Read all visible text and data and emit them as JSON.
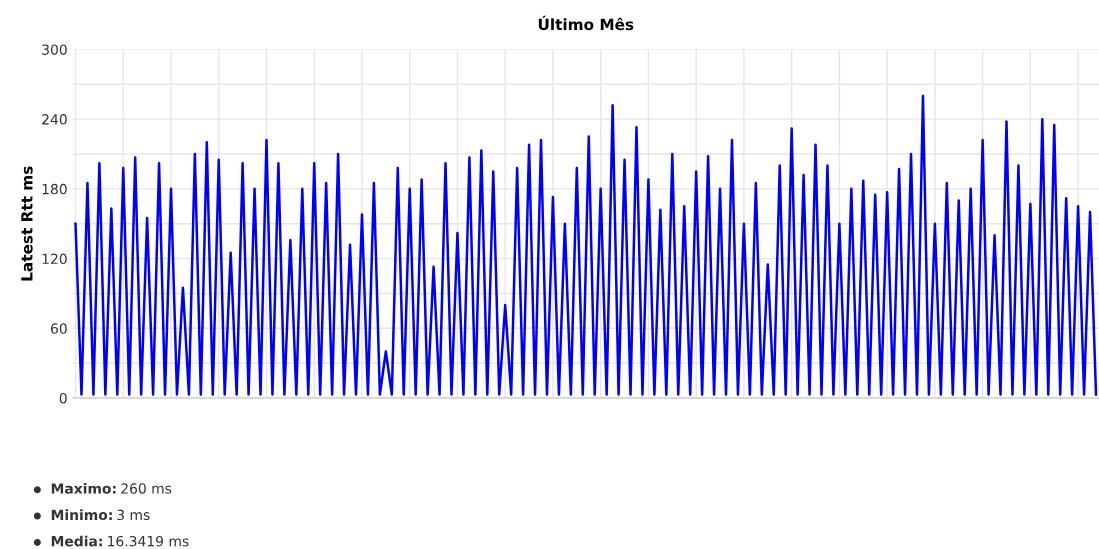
{
  "chart_data": {
    "type": "line",
    "title": "Último Mês",
    "ylabel": "Latest Rtt ms",
    "categories": [
      null,
      null,
      null,
      null,
      null,
      null,
      null,
      null,
      null,
      null,
      null,
      null,
      null,
      null,
      null,
      null,
      null,
      null,
      null,
      null,
      null,
      null,
      null,
      null,
      null,
      null,
      null,
      null,
      null,
      null,
      null,
      null,
      null,
      null,
      null,
      null,
      null,
      null,
      null,
      null,
      null,
      null,
      null,
      null,
      null,
      null,
      null,
      null,
      null,
      null,
      null,
      null,
      null,
      null,
      null,
      null,
      null,
      null,
      null,
      null,
      null,
      null,
      null,
      null,
      null,
      null,
      null,
      null,
      null,
      null,
      null,
      null,
      null,
      null,
      null,
      null,
      null,
      null,
      null,
      null,
      null,
      null,
      null,
      null,
      null,
      null,
      null,
      null,
      null,
      null,
      null,
      null,
      null,
      null,
      null,
      null,
      null,
      null,
      null,
      null,
      null,
      null,
      null,
      null,
      null,
      null,
      null,
      null,
      null,
      null,
      null,
      null,
      null,
      null,
      null,
      null,
      null,
      null,
      null,
      null,
      null,
      null,
      null,
      null,
      null,
      null,
      null,
      null,
      null,
      null,
      null,
      null,
      null,
      null,
      null,
      null,
      null,
      null,
      null,
      null,
      null,
      null,
      null,
      null,
      null,
      null,
      null,
      null,
      null,
      null,
      null,
      null,
      null,
      null,
      null,
      null,
      null,
      null,
      null,
      null,
      null,
      null,
      null,
      null,
      null,
      null,
      null,
      null,
      null,
      null,
      null,
      null
    ],
    "series": [
      {
        "color": "#0000ff",
        "values": [
          150,
          3,
          185,
          3,
          202,
          3,
          163,
          3,
          198,
          3,
          207,
          3,
          155,
          3,
          202,
          3,
          180,
          3,
          95,
          3,
          210,
          3,
          220,
          3,
          205,
          3,
          125,
          3,
          202,
          3,
          180,
          3,
          222,
          3,
          202,
          3,
          136,
          3,
          180,
          3,
          202,
          3,
          185,
          3,
          210,
          3,
          132,
          3,
          158,
          3,
          185,
          3,
          40,
          3,
          198,
          3,
          180,
          3,
          188,
          3,
          113,
          3,
          202,
          3,
          142,
          3,
          207,
          3,
          213,
          3,
          195,
          3,
          80,
          3,
          198,
          3,
          218,
          3,
          222,
          3,
          173,
          3,
          150,
          3,
          198,
          3,
          225,
          3,
          180,
          3,
          252,
          3,
          205,
          3,
          233,
          3,
          188,
          3,
          162,
          3,
          210,
          3,
          165,
          3,
          195,
          3,
          208,
          3,
          180,
          3,
          222,
          3,
          150,
          3,
          185,
          3,
          115,
          3,
          200,
          3,
          232,
          3,
          192,
          3,
          218,
          3,
          200,
          3,
          150,
          3,
          180,
          3,
          187,
          3,
          175,
          3,
          177,
          3,
          197,
          3,
          210,
          3,
          260,
          3,
          150,
          3,
          185,
          3,
          170,
          3,
          180,
          3,
          222,
          3,
          140,
          3,
          238,
          3,
          200,
          3,
          167,
          3,
          240,
          3,
          235,
          3,
          172,
          3,
          165,
          3,
          160,
          3
        ]
      }
    ],
    "ylim": [
      0,
      300
    ],
    "yticks": [
      0,
      {
        "value": 30,
        "label": null
      },
      60,
      {
        "value": 90,
        "label": null
      },
      120,
      {
        "value": 150,
        "label": null
      },
      180,
      {
        "value": 210,
        "label": null
      },
      240,
      {
        "value": 270,
        "label": null
      },
      300
    ],
    "grid": true,
    "marker": "none",
    "line_style": "solid",
    "tick_labels": "y",
    "annotations": [
      "Maximo: 260 ms",
      "Minimo: 3 ms",
      "Media: 16.3419 ms"
    ]
  }
}
